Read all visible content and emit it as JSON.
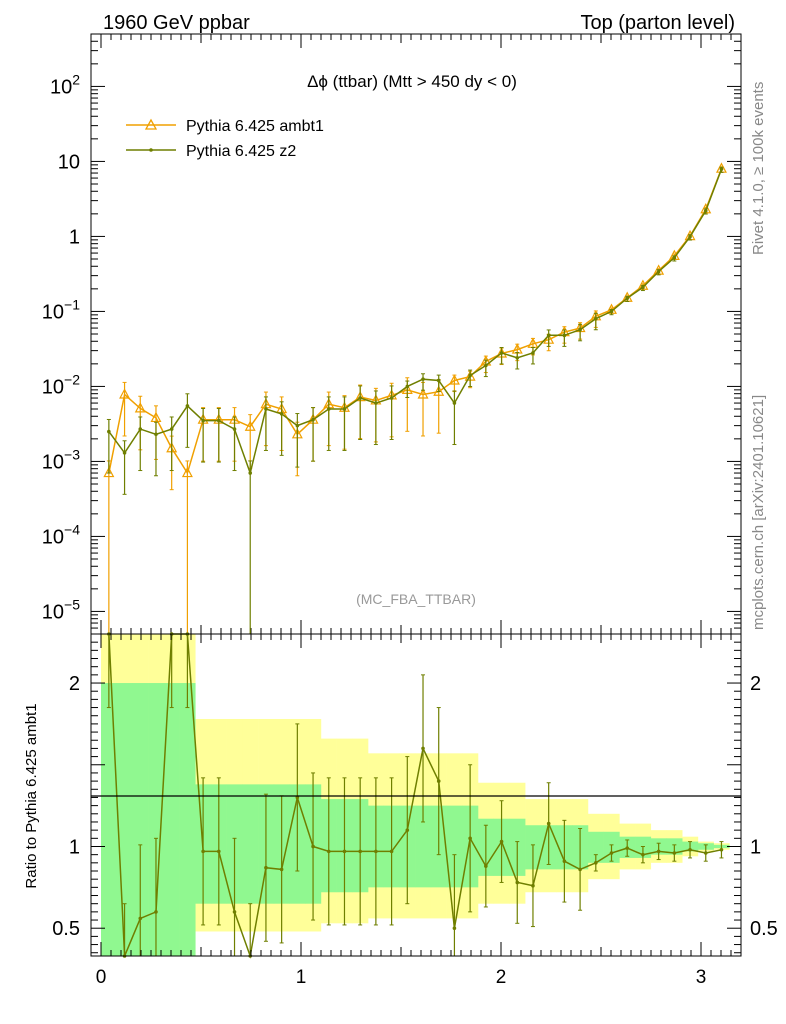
{
  "header": {
    "left": "1960 GeV ppbar",
    "right": "Top (parton level)"
  },
  "side_labels": {
    "rivet": "Rivet 4.1.0, ≥ 100k events",
    "mcplots": "mcplots.cern.ch [arXiv:2401.10621]"
  },
  "chart_data": {
    "type": "line",
    "title": "Δϕ (ttbar) (Mtt > 450 dy < 0)",
    "analysis": "(MC_FBA_TTBAR)",
    "xlabel": "",
    "ylabel": "",
    "xlim": [
      -0.05,
      3.2
    ],
    "ylim": [
      5e-06,
      500
    ],
    "ylog": true,
    "x_ticks": [
      "0",
      "1",
      "2",
      "3"
    ],
    "y_ticks": [
      {
        "base": "10",
        "exp": "2"
      },
      {
        "base": "10",
        "exp": ""
      },
      {
        "base": "1",
        "exp": ""
      },
      {
        "base": "10",
        "exp": "−1"
      },
      {
        "base": "10",
        "exp": "−2"
      },
      {
        "base": "10",
        "exp": "−3"
      },
      {
        "base": "10",
        "exp": "−4"
      },
      {
        "base": "10",
        "exp": "−5"
      }
    ],
    "x": [
      0.0393,
      0.1178,
      0.1963,
      0.2749,
      0.3534,
      0.432,
      0.5105,
      0.589,
      0.6676,
      0.7461,
      0.8247,
      0.9032,
      0.9817,
      1.0603,
      1.1388,
      1.2174,
      1.2959,
      1.3744,
      1.453,
      1.5315,
      1.6101,
      1.6886,
      1.7671,
      1.8457,
      1.9242,
      2.0028,
      2.0813,
      2.1598,
      2.2384,
      2.3169,
      2.3955,
      2.474,
      2.5525,
      2.6311,
      2.7096,
      2.7882,
      2.8667,
      2.9452,
      3.0238,
      3.1023
    ],
    "series": [
      {
        "name": "Pythia 6.425 ambt1",
        "color": "#f0a000",
        "marker": "triangle",
        "values": [
          0.0007,
          0.0078,
          0.0051,
          0.0038,
          0.0015,
          0.0007,
          0.0036,
          0.0036,
          0.0036,
          0.0029,
          0.0058,
          0.005,
          0.0023,
          0.0036,
          0.0058,
          0.0052,
          0.0072,
          0.0065,
          0.0076,
          0.009,
          0.0078,
          0.0085,
          0.012,
          0.0135,
          0.0215,
          0.0275,
          0.031,
          0.037,
          0.042,
          0.053,
          0.06,
          0.086,
          0.105,
          0.152,
          0.22,
          0.35,
          0.55,
          1.01,
          2.3,
          8.0
        ]
      },
      {
        "name": "Pythia 6.425 z2",
        "color": "#6f7f00",
        "marker": "dot",
        "values": [
          0.0025,
          0.0013,
          0.0027,
          0.0023,
          0.0027,
          0.0055,
          0.0035,
          0.0035,
          0.0027,
          0.0007,
          0.005,
          0.0043,
          0.003,
          0.0036,
          0.005,
          0.005,
          0.007,
          0.006,
          0.007,
          0.01,
          0.0125,
          0.012,
          0.006,
          0.014,
          0.019,
          0.028,
          0.024,
          0.028,
          0.048,
          0.048,
          0.057,
          0.08,
          0.1,
          0.15,
          0.21,
          0.34,
          0.52,
          0.99,
          2.2,
          7.9
        ]
      }
    ],
    "ratio_panel": {
      "ylabel": "Ratio to Pythia 6.425 ambt1",
      "ylim": [
        0.33,
        2.3
      ],
      "y_ticks": [
        "0.5",
        "1",
        "2"
      ],
      "yellow_lo": [
        0.0,
        0.0,
        0.0,
        0.0,
        0.0,
        0.0,
        0.48,
        0.48,
        0.48,
        0.48,
        0.48,
        0.48,
        0.48,
        0.48,
        0.53,
        0.53,
        0.53,
        0.56,
        0.56,
        0.56,
        0.56,
        0.56,
        0.56,
        0.56,
        0.65,
        0.65,
        0.65,
        0.72,
        0.72,
        0.72,
        0.72,
        0.8,
        0.8,
        0.86,
        0.86,
        0.9,
        0.9,
        0.94,
        0.97,
        0.98
      ],
      "yellow_hi": [
        2.3,
        2.3,
        2.3,
        2.3,
        2.3,
        2.3,
        1.78,
        1.78,
        1.78,
        1.78,
        1.78,
        1.78,
        1.78,
        1.78,
        1.66,
        1.66,
        1.66,
        1.57,
        1.57,
        1.57,
        1.57,
        1.57,
        1.57,
        1.57,
        1.39,
        1.39,
        1.39,
        1.29,
        1.29,
        1.29,
        1.29,
        1.2,
        1.2,
        1.14,
        1.14,
        1.1,
        1.1,
        1.06,
        1.03,
        1.02
      ],
      "green_lo": [
        0.0,
        0.0,
        0.0,
        0.0,
        0.0,
        0.0,
        0.65,
        0.65,
        0.65,
        0.65,
        0.65,
        0.65,
        0.65,
        0.65,
        0.72,
        0.72,
        0.72,
        0.75,
        0.75,
        0.75,
        0.75,
        0.75,
        0.75,
        0.75,
        0.82,
        0.82,
        0.82,
        0.86,
        0.86,
        0.86,
        0.86,
        0.9,
        0.9,
        0.93,
        0.93,
        0.95,
        0.95,
        0.97,
        0.98,
        0.99
      ],
      "green_hi": [
        2.0,
        2.0,
        2.0,
        2.0,
        2.0,
        2.0,
        1.38,
        1.38,
        1.38,
        1.38,
        1.38,
        1.38,
        1.38,
        1.38,
        1.29,
        1.29,
        1.29,
        1.25,
        1.25,
        1.25,
        1.25,
        1.25,
        1.25,
        1.25,
        1.17,
        1.17,
        1.17,
        1.13,
        1.13,
        1.13,
        1.13,
        1.09,
        1.09,
        1.06,
        1.06,
        1.05,
        1.05,
        1.03,
        1.02,
        1.01
      ],
      "values": [
        2.3,
        0.2,
        0.56,
        0.6,
        2.3,
        2.3,
        0.97,
        0.97,
        0.6,
        0.2,
        0.87,
        0.86,
        1.3,
        1.0,
        0.97,
        0.97,
        0.97,
        0.97,
        0.97,
        1.1,
        1.6,
        1.4,
        0.5,
        1.05,
        0.88,
        1.03,
        0.78,
        0.76,
        1.14,
        0.91,
        0.86,
        0.9,
        0.96,
        0.99,
        0.95,
        0.97,
        0.96,
        0.98,
        0.96,
        0.98
      ]
    }
  }
}
